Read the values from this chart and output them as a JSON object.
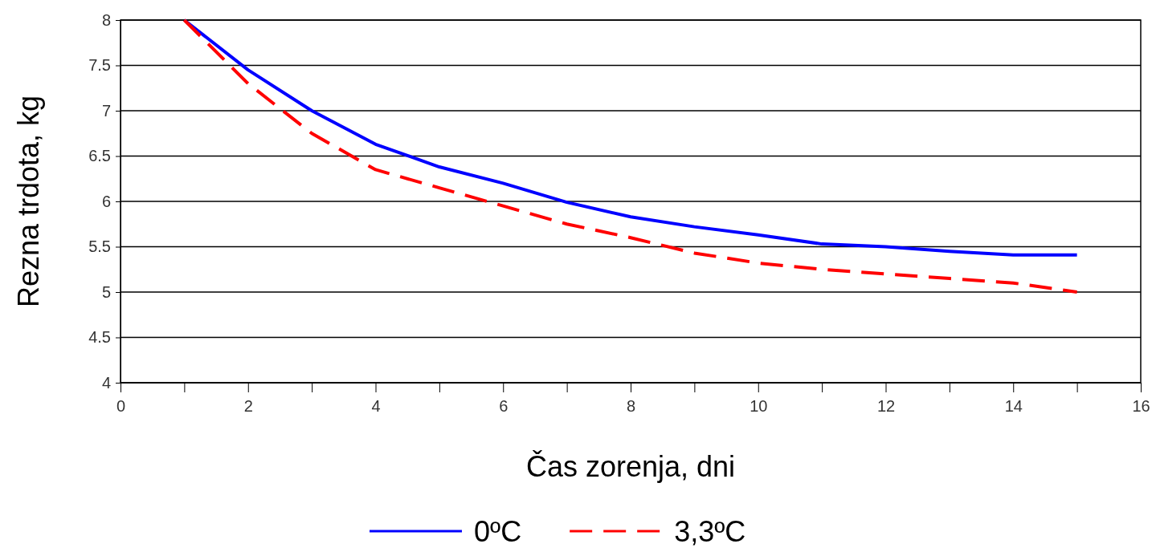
{
  "chart_data": {
    "type": "line",
    "xlabel": "Čas zorenja, dni",
    "ylabel": "Rezna trdota, kg",
    "x": [
      1,
      2,
      3,
      4,
      5,
      6,
      7,
      8,
      9,
      10,
      11,
      12,
      13,
      14,
      15
    ],
    "xlim": [
      0,
      16
    ],
    "xticks": [
      0,
      {
        "value": 1,
        "label": null
      },
      2,
      {
        "value": 3,
        "label": null
      },
      4,
      {
        "value": 5,
        "label": null
      },
      6,
      {
        "value": 7,
        "label": null
      },
      8,
      {
        "value": 9,
        "label": null
      },
      10,
      {
        "value": 11,
        "label": null
      },
      12,
      {
        "value": 13,
        "label": null
      },
      14,
      {
        "value": 15,
        "label": null
      },
      16
    ],
    "ylim": [
      4,
      8
    ],
    "yticks": [
      4,
      4.5,
      5,
      5.5,
      6,
      6.5,
      7,
      7.5,
      8
    ],
    "grid": "y",
    "legend": "bottom",
    "marker": "none",
    "series": [
      {
        "name": "0ºC",
        "color": "#0000ff",
        "line_style": "solid",
        "values": [
          8,
          7.45,
          7.0,
          6.63,
          6.38,
          6.2,
          5.99,
          5.83,
          5.72,
          5.63,
          5.53,
          5.5,
          5.45,
          5.41,
          5.41
        ]
      },
      {
        "name": "3,3ºC",
        "color": "#ff0000",
        "line_style": "dashed",
        "values": [
          8,
          7.3,
          6.75,
          6.35,
          6.15,
          5.95,
          5.75,
          5.6,
          5.43,
          5.32,
          5.25,
          5.2,
          5.15,
          5.1,
          5.0
        ]
      }
    ]
  }
}
